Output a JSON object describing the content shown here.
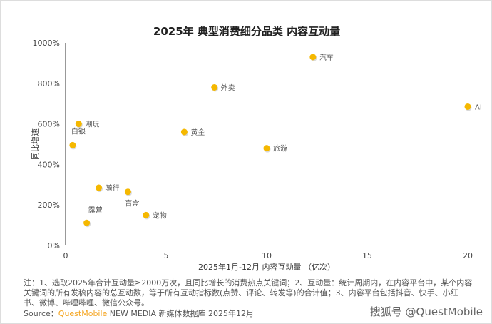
{
  "chart_data": {
    "type": "scatter",
    "title": "2025年 典型消费细分品类 内容互动量",
    "xlabel": "2025年1月-12月 内容互动量 （亿次）",
    "ylabel": "同比增速",
    "xlim": [
      0,
      20
    ],
    "ylim": [
      0,
      1000
    ],
    "xticks": [
      0,
      5,
      10,
      15,
      20
    ],
    "yticks": [
      "0%",
      "200%",
      "400%",
      "600%",
      "800%",
      "1000%"
    ],
    "grid": false,
    "point_color": "#f5b800",
    "points": [
      {
        "label": "汽车",
        "x": 12.3,
        "y": 930
      },
      {
        "label": "AI",
        "x": 20,
        "y": 685
      },
      {
        "label": "外卖",
        "x": 7.4,
        "y": 780
      },
      {
        "label": "黄金",
        "x": 5.9,
        "y": 560
      },
      {
        "label": "旅游",
        "x": 10,
        "y": 480
      },
      {
        "label": "潮玩",
        "x": 0.65,
        "y": 600
      },
      {
        "label": "白银",
        "x": 0.35,
        "y": 495
      },
      {
        "label": "骑行",
        "x": 1.65,
        "y": 285
      },
      {
        "label": "盲盒",
        "x": 3.1,
        "y": 265
      },
      {
        "label": "宠物",
        "x": 4.0,
        "y": 150
      },
      {
        "label": "露营",
        "x": 1.05,
        "y": 112
      }
    ]
  },
  "footer": {
    "note": "注：1、选取2025年合计互动量≥2000万次，且同比增长的消费热点关键词；2、互动量：统计周期内，在内容平台中，某个内容关键词的所有发稿内容的总互动数，等于所有互动指标数(点赞、评论、转发等)的合计值；3、内容平台包括抖音、快手、小红书、微博、哔哩哔哩、微信公众号。",
    "source_prefix": "Source：",
    "source_brand": "QuestMobile",
    "source_rest": " NEW MEDIA 新媒体数据库 2025年12月",
    "watermark": "搜狐号 @QuestMobile"
  }
}
